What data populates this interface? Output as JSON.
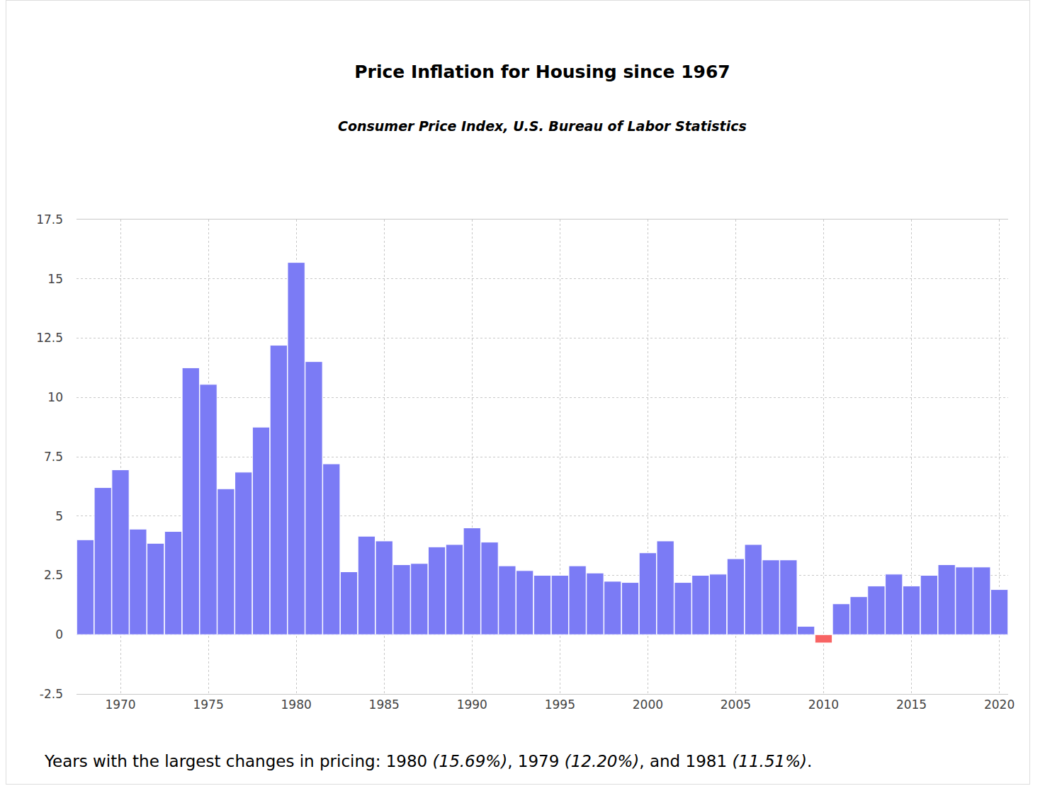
{
  "chart_data": {
    "type": "bar",
    "title": "Price Inflation for Housing since 1967",
    "subtitle": "Consumer Price Index, U.S. Bureau of Labor Statistics",
    "footnote": "Years with the largest changes in pricing: 1980 (15.69%), 1979 (12.20%), and 1981 (11.51%).",
    "x": [
      1968,
      1969,
      1970,
      1971,
      1972,
      1973,
      1974,
      1975,
      1976,
      1977,
      1978,
      1979,
      1980,
      1981,
      1982,
      1983,
      1984,
      1985,
      1986,
      1987,
      1988,
      1989,
      1990,
      1991,
      1992,
      1993,
      1994,
      1995,
      1996,
      1997,
      1998,
      1999,
      2000,
      2001,
      2002,
      2003,
      2004,
      2005,
      2006,
      2007,
      2008,
      2009,
      2010,
      2011,
      2012,
      2013,
      2014,
      2015,
      2016,
      2017,
      2018,
      2019,
      2020
    ],
    "values": [
      4.0,
      6.2,
      6.95,
      4.45,
      3.85,
      4.35,
      11.25,
      10.55,
      6.15,
      6.85,
      8.75,
      12.2,
      15.69,
      11.51,
      7.2,
      2.65,
      4.15,
      3.95,
      2.95,
      3.0,
      3.7,
      3.8,
      4.5,
      3.9,
      2.9,
      2.7,
      2.5,
      2.5,
      2.9,
      2.6,
      2.25,
      2.2,
      3.45,
      3.95,
      2.2,
      2.5,
      2.55,
      3.2,
      3.8,
      3.15,
      3.15,
      0.35,
      -0.35,
      1.3,
      1.6,
      2.05,
      2.55,
      2.05,
      2.5,
      2.95,
      2.85,
      2.85,
      1.9
    ],
    "colors": [
      "#7b7bf5",
      "#7b7bf5",
      "#7b7bf5",
      "#7b7bf5",
      "#7b7bf5",
      "#7b7bf5",
      "#7b7bf5",
      "#7b7bf5",
      "#7b7bf5",
      "#7b7bf5",
      "#7b7bf5",
      "#7b7bf5",
      "#7b7bf5",
      "#7b7bf5",
      "#7b7bf5",
      "#7b7bf5",
      "#7b7bf5",
      "#7b7bf5",
      "#7b7bf5",
      "#7b7bf5",
      "#7b7bf5",
      "#7b7bf5",
      "#7b7bf5",
      "#7b7bf5",
      "#7b7bf5",
      "#7b7bf5",
      "#7b7bf5",
      "#7b7bf5",
      "#7b7bf5",
      "#7b7bf5",
      "#7b7bf5",
      "#7b7bf5",
      "#7b7bf5",
      "#7b7bf5",
      "#7b7bf5",
      "#7b7bf5",
      "#7b7bf5",
      "#7b7bf5",
      "#7b7bf5",
      "#7b7bf5",
      "#7b7bf5",
      "#7b7bf5",
      "#f86464",
      "#7b7bf5",
      "#7b7bf5",
      "#7b7bf5",
      "#7b7bf5",
      "#7b7bf5",
      "#7b7bf5",
      "#7b7bf5",
      "#7b7bf5",
      "#7b7bf5",
      "#7b7bf5"
    ],
    "xlim": [
      1967.5,
      2020.5
    ],
    "xticks": [
      1970,
      1975,
      1980,
      1985,
      1990,
      1995,
      2000,
      2005,
      2010,
      2015,
      2020
    ],
    "ylim": [
      -2.5,
      17.5
    ],
    "yticks": [
      -2.5,
      0,
      2.5,
      5,
      7.5,
      10,
      12.5,
      15,
      17.5
    ],
    "grid": true
  }
}
